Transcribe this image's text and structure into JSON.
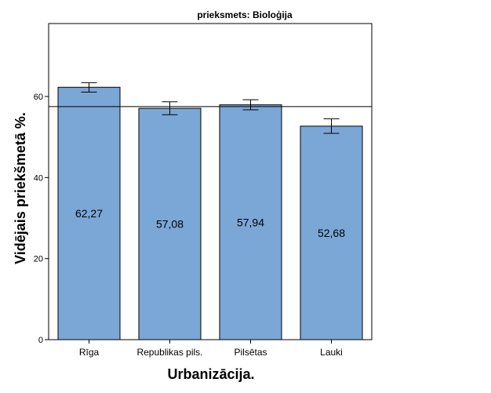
{
  "chart_data": {
    "type": "bar",
    "title": "prieksmets: Bioloģija",
    "xlabel": "Urbanizācija.",
    "ylabel": "Vidējais priekšmetā %.",
    "categories": [
      "Rīga",
      "Republikas pils.",
      "Pilsētas",
      "Lauki"
    ],
    "values": [
      62.27,
      57.08,
      57.94,
      52.68
    ],
    "value_labels": [
      "62,27",
      "57,08",
      "57,94",
      "52,68"
    ],
    "error_bars": [
      {
        "low": 61.1,
        "high": 63.4
      },
      {
        "low": 55.5,
        "high": 58.7
      },
      {
        "low": 56.7,
        "high": 59.2
      },
      {
        "low": 50.9,
        "high": 54.5
      }
    ],
    "reference_line": 57.5,
    "ylim": [
      0,
      78
    ],
    "yticks": [
      0,
      20,
      40,
      60
    ],
    "bar_color": "#7BA7D7",
    "grid": false
  }
}
